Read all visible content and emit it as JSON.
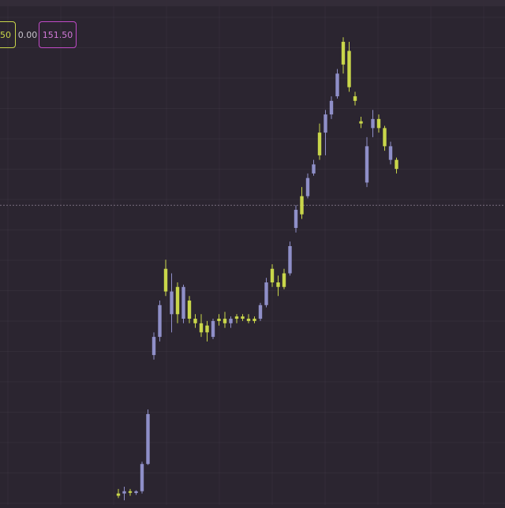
{
  "header": {
    "badge_a": "50",
    "badge_b": "0.00",
    "badge_c": "151.50"
  },
  "colors": {
    "background": "#2b2530",
    "grid": "#4a4250",
    "up": "#c9d64a",
    "down": "#8f8fc8",
    "crosshair": "#7a6f7e",
    "badge_a": "#c9d64a",
    "badge_c": "#c04ac7"
  },
  "chart_data": {
    "type": "candlestick",
    "title": "",
    "xlabel": "",
    "ylabel": "",
    "grid": true,
    "candles": [
      {
        "o": 0.0,
        "h": 1.5,
        "l": -0.5,
        "c": 0.5,
        "dir": "up"
      },
      {
        "o": 0.5,
        "h": 2.0,
        "l": -1.0,
        "c": 1.0,
        "dir": "down"
      },
      {
        "o": 1.0,
        "h": 1.5,
        "l": 0.0,
        "c": 0.8,
        "dir": "up"
      },
      {
        "o": 0.6,
        "h": 1.2,
        "l": 0.2,
        "c": 1.0,
        "dir": "down"
      },
      {
        "o": 1.0,
        "h": 7.5,
        "l": 0.5,
        "c": 7.0,
        "dir": "down"
      },
      {
        "o": 7.0,
        "h": 19.0,
        "l": 6.8,
        "c": 18.0,
        "dir": "down"
      },
      {
        "o": 31.0,
        "h": 36.0,
        "l": 30.0,
        "c": 35.0,
        "dir": "down"
      },
      {
        "o": 35.0,
        "h": 43.0,
        "l": 34.0,
        "c": 42.0,
        "dir": "down"
      },
      {
        "o": 50.0,
        "h": 52.0,
        "l": 44.0,
        "c": 45.0,
        "dir": "up"
      },
      {
        "o": 45.0,
        "h": 49.0,
        "l": 36.0,
        "c": 40.0,
        "dir": "down"
      },
      {
        "o": 40.0,
        "h": 47.0,
        "l": 38.0,
        "c": 46.0,
        "dir": "up"
      },
      {
        "o": 46.0,
        "h": 46.5,
        "l": 38.0,
        "c": 39.0,
        "dir": "down"
      },
      {
        "o": 39.0,
        "h": 44.0,
        "l": 38.0,
        "c": 43.0,
        "dir": "up"
      },
      {
        "o": 39.0,
        "h": 40.0,
        "l": 37.0,
        "c": 38.0,
        "dir": "up"
      },
      {
        "o": 38.0,
        "h": 40.0,
        "l": 35.0,
        "c": 36.0,
        "dir": "up"
      },
      {
        "o": 36.0,
        "h": 38.5,
        "l": 34.0,
        "c": 37.5,
        "dir": "up"
      },
      {
        "o": 35.0,
        "h": 39.0,
        "l": 34.5,
        "c": 38.5,
        "dir": "down"
      },
      {
        "o": 38.5,
        "h": 40.0,
        "l": 37.5,
        "c": 39.0,
        "dir": "up"
      },
      {
        "o": 39.0,
        "h": 40.5,
        "l": 37.0,
        "c": 38.0,
        "dir": "up"
      },
      {
        "o": 38.0,
        "h": 39.5,
        "l": 37.0,
        "c": 39.0,
        "dir": "down"
      },
      {
        "o": 39.0,
        "h": 40.0,
        "l": 38.0,
        "c": 39.5,
        "dir": "up"
      },
      {
        "o": 39.5,
        "h": 40.0,
        "l": 38.5,
        "c": 39.0,
        "dir": "up"
      },
      {
        "o": 39.0,
        "h": 40.0,
        "l": 38.0,
        "c": 38.5,
        "dir": "up"
      },
      {
        "o": 38.5,
        "h": 39.5,
        "l": 38.0,
        "c": 39.0,
        "dir": "up"
      },
      {
        "o": 39.0,
        "h": 42.5,
        "l": 38.5,
        "c": 42.0,
        "dir": "down"
      },
      {
        "o": 42.0,
        "h": 48.0,
        "l": 41.5,
        "c": 47.0,
        "dir": "down"
      },
      {
        "o": 50.0,
        "h": 51.0,
        "l": 46.0,
        "c": 47.0,
        "dir": "up"
      },
      {
        "o": 47.0,
        "h": 48.5,
        "l": 44.0,
        "c": 46.0,
        "dir": "up"
      },
      {
        "o": 46.0,
        "h": 50.0,
        "l": 45.5,
        "c": 49.0,
        "dir": "up"
      },
      {
        "o": 49.0,
        "h": 56.0,
        "l": 48.5,
        "c": 55.0,
        "dir": "down"
      },
      {
        "o": 59.0,
        "h": 64.0,
        "l": 58.0,
        "c": 63.0,
        "dir": "down"
      },
      {
        "o": 66.0,
        "h": 68.0,
        "l": 61.0,
        "c": 62.0,
        "dir": "up"
      },
      {
        "o": 66.0,
        "h": 71.0,
        "l": 65.5,
        "c": 70.0,
        "dir": "down"
      },
      {
        "o": 71.0,
        "h": 74.0,
        "l": 70.5,
        "c": 73.0,
        "dir": "down"
      },
      {
        "o": 80.0,
        "h": 82.0,
        "l": 74.0,
        "c": 75.0,
        "dir": "up"
      },
      {
        "o": 80.0,
        "h": 85.0,
        "l": 75.0,
        "c": 84.0,
        "dir": "down"
      },
      {
        "o": 84.0,
        "h": 88.0,
        "l": 83.0,
        "c": 87.0,
        "dir": "down"
      },
      {
        "o": 88.0,
        "h": 94.0,
        "l": 87.5,
        "c": 93.0,
        "dir": "down"
      },
      {
        "o": 100.0,
        "h": 101.0,
        "l": 93.0,
        "c": 95.0,
        "dir": "up"
      },
      {
        "o": 98.0,
        "h": 100.0,
        "l": 89.0,
        "c": 90.0,
        "dir": "up"
      },
      {
        "o": 88.0,
        "h": 89.0,
        "l": 86.0,
        "c": 87.0,
        "dir": "up"
      },
      {
        "o": 82.0,
        "h": 83.5,
        "l": 81.0,
        "c": 82.5,
        "dir": "up"
      },
      {
        "o": 77.0,
        "h": 79.0,
        "l": 68.0,
        "c": 69.0,
        "dir": "down"
      },
      {
        "o": 81.0,
        "h": 85.0,
        "l": 79.0,
        "c": 83.0,
        "dir": "down"
      },
      {
        "o": 83.0,
        "h": 84.0,
        "l": 80.0,
        "c": 81.0,
        "dir": "up"
      },
      {
        "o": 81.0,
        "h": 81.5,
        "l": 76.0,
        "c": 77.0,
        "dir": "up"
      },
      {
        "o": 77.0,
        "h": 78.0,
        "l": 73.0,
        "c": 74.0,
        "dir": "down"
      },
      {
        "o": 74.0,
        "h": 74.5,
        "l": 71.0,
        "c": 72.0,
        "dir": "up"
      }
    ],
    "ylim": [
      -2,
      104
    ],
    "horizontal_marker": 64
  }
}
